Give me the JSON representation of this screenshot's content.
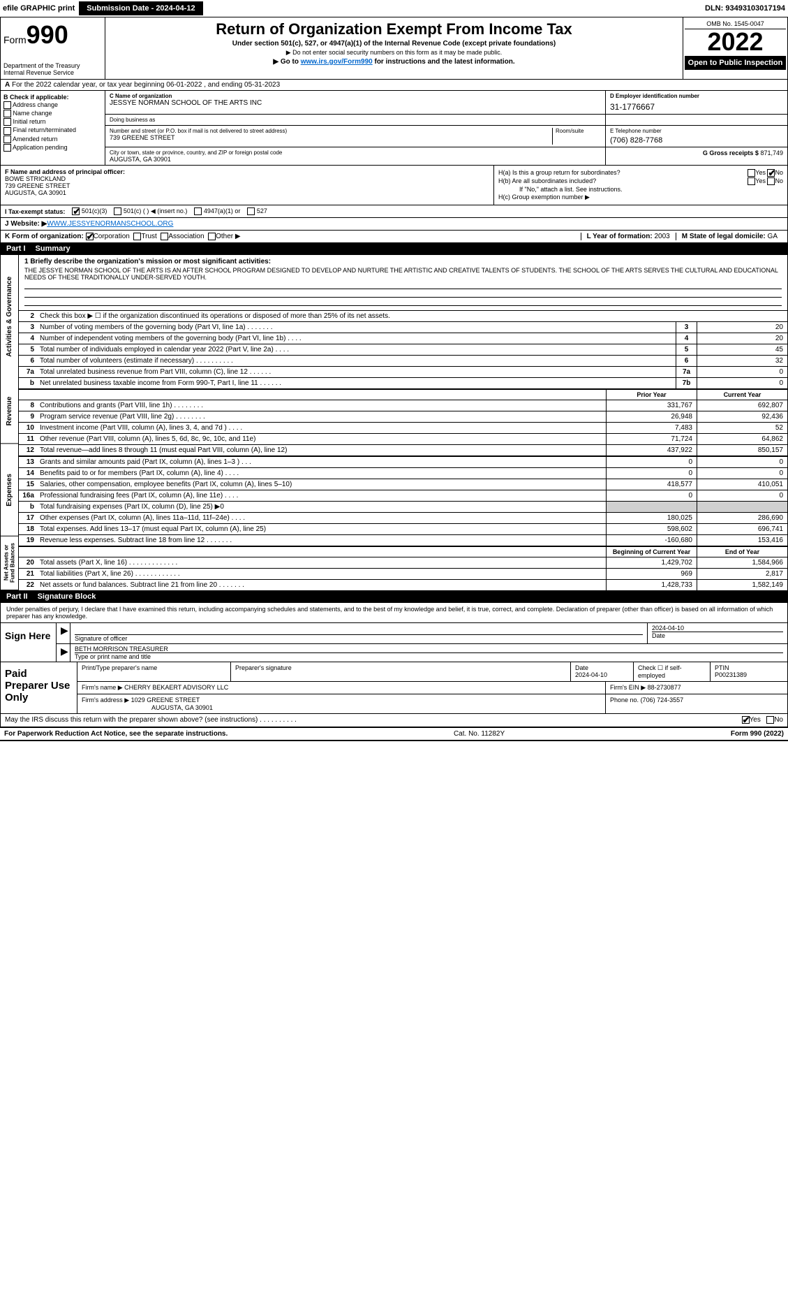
{
  "topbar": {
    "efile": "efile GRAPHIC print",
    "submission": "Submission Date - 2024-04-12",
    "dln": "DLN: 93493103017194"
  },
  "header": {
    "form_prefix": "Form",
    "form_number": "990",
    "dept": "Department of the Treasury",
    "irs": "Internal Revenue Service",
    "title": "Return of Organization Exempt From Income Tax",
    "subtitle": "Under section 501(c), 527, or 4947(a)(1) of the Internal Revenue Code (except private foundations)",
    "note1": "▶ Do not enter social security numbers on this form as it may be made public.",
    "note2_pre": "▶ Go to ",
    "note2_link": "www.irs.gov/Form990",
    "note2_post": " for instructions and the latest information.",
    "omb": "OMB No. 1545-0047",
    "year": "2022",
    "open": "Open to Public Inspection"
  },
  "rowA": {
    "label_a": "A",
    "text": "For the 2022 calendar year, or tax year beginning 06-01-2022   , and ending 05-31-2023"
  },
  "colB": {
    "head": "B Check if applicable:",
    "opts": [
      "Address change",
      "Name change",
      "Initial return",
      "Final return/terminated",
      "Amended return",
      "Application pending"
    ]
  },
  "colC": {
    "lbl_name": "C Name of organization",
    "org": "JESSYE NORMAN SCHOOL OF THE ARTS INC",
    "dba_lbl": "Doing business as",
    "addr_lbl": "Number and street (or P.O. box if mail is not delivered to street address)",
    "room_lbl": "Room/suite",
    "addr": "739 GREENE STREET",
    "city_lbl": "City or town, state or province, country, and ZIP or foreign postal code",
    "city": "AUGUSTA, GA  30901"
  },
  "colD": {
    "lbl": "D Employer identification number",
    "ein": "31-1776667",
    "e_lbl": "E Telephone number",
    "phone": "(706) 828-7768",
    "g_lbl": "G Gross receipts $",
    "gross": "871,749"
  },
  "rowF": {
    "lbl": "F Name and address of principal officer:",
    "name": "BOWE STRICKLAND",
    "addr1": "739 GREENE STREET",
    "addr2": "AUGUSTA, GA  30901"
  },
  "rowH": {
    "ha": "H(a)  Is this a group return for subordinates?",
    "hb": "H(b)  Are all subordinates included?",
    "hb_note": "If \"No,\" attach a list. See instructions.",
    "hc": "H(c)  Group exemption number ▶",
    "yes": "Yes",
    "no": "No"
  },
  "rowI": {
    "lbl": "I  Tax-exempt status:",
    "o1": "501(c)(3)",
    "o2": "501(c) (   ) ◀ (insert no.)",
    "o3": "4947(a)(1) or",
    "o4": "527"
  },
  "rowJ": {
    "lbl": "J  Website: ▶ ",
    "url": "WWW.JESSYENORMANSCHOOL.ORG"
  },
  "rowK": {
    "lbl": "K Form of organization:",
    "o1": "Corporation",
    "o2": "Trust",
    "o3": "Association",
    "o4": "Other ▶"
  },
  "rowLM": {
    "l_lbl": "L Year of formation:",
    "l_val": "2003",
    "m_lbl": "M State of legal domicile:",
    "m_val": "GA"
  },
  "part1": {
    "tag": "Part I",
    "title": "Summary"
  },
  "sidetabs": {
    "a": "Activities & Governance",
    "b": "Revenue",
    "c": "Expenses",
    "d": "Net Assets or Fund Balances"
  },
  "mission": {
    "lbl": "1  Briefly describe the organization's mission or most significant activities:",
    "text": "THE JESSYE NORMAN SCHOOL OF THE ARTS IS AN AFTER SCHOOL PROGRAM DESIGNED TO DEVELOP AND NURTURE THE ARTISTIC AND CREATIVE TALENTS OF STUDENTS. THE SCHOOL OF THE ARTS SERVES THE CULTURAL AND EDUCATIONAL NEEDS OF THESE TRADITIONALLY UNDER-SERVED YOUTH."
  },
  "lines_gov": [
    {
      "n": "2",
      "d": "Check this box ▶ ☐ if the organization discontinued its operations or disposed of more than 25% of its net assets.",
      "box": "",
      "v": ""
    },
    {
      "n": "3",
      "d": "Number of voting members of the governing body (Part VI, line 1a)  .    .    .    .    .    .    .",
      "box": "3",
      "v": "20"
    },
    {
      "n": "4",
      "d": "Number of independent voting members of the governing body (Part VI, line 1b)   .    .    .    .",
      "box": "4",
      "v": "20"
    },
    {
      "n": "5",
      "d": "Total number of individuals employed in calendar year 2022 (Part V, line 2a)   .    .    .    .",
      "box": "5",
      "v": "45"
    },
    {
      "n": "6",
      "d": "Total number of volunteers (estimate if necessary)   .    .    .    .    .    .    .    .    .    .",
      "box": "6",
      "v": "32"
    },
    {
      "n": "7a",
      "d": "Total unrelated business revenue from Part VIII, column (C), line 12   .    .    .    .    .    .",
      "box": "7a",
      "v": "0"
    },
    {
      "n": "b",
      "d": "Net unrelated business taxable income from Form 990-T, Part I, line 11   .    .    .    .    .    .",
      "box": "7b",
      "v": "0"
    }
  ],
  "col_hdr": {
    "prior": "Prior Year",
    "curr": "Current Year"
  },
  "lines_rev": [
    {
      "n": "8",
      "d": "Contributions and grants (Part VIII, line 1h)   .    .    .    .    .    .    .    .",
      "p": "331,767",
      "c": "692,807"
    },
    {
      "n": "9",
      "d": "Program service revenue (Part VIII, line 2g)   .    .    .    .    .    .    .    .",
      "p": "26,948",
      "c": "92,436"
    },
    {
      "n": "10",
      "d": "Investment income (Part VIII, column (A), lines 3, 4, and 7d )   .    .    .    .",
      "p": "7,483",
      "c": "52"
    },
    {
      "n": "11",
      "d": "Other revenue (Part VIII, column (A), lines 5, 6d, 8c, 9c, 10c, and 11e)",
      "p": "71,724",
      "c": "64,862"
    },
    {
      "n": "12",
      "d": "Total revenue—add lines 8 through 11 (must equal Part VIII, column (A), line 12)",
      "p": "437,922",
      "c": "850,157"
    }
  ],
  "lines_exp": [
    {
      "n": "13",
      "d": "Grants and similar amounts paid (Part IX, column (A), lines 1–3 )   .    .    .",
      "p": "0",
      "c": "0"
    },
    {
      "n": "14",
      "d": "Benefits paid to or for members (Part IX, column (A), line 4)   .    .    .    .",
      "p": "0",
      "c": "0"
    },
    {
      "n": "15",
      "d": "Salaries, other compensation, employee benefits (Part IX, column (A), lines 5–10)",
      "p": "418,577",
      "c": "410,051"
    },
    {
      "n": "16a",
      "d": "Professional fundraising fees (Part IX, column (A), line 11e)   .    .    .    .",
      "p": "0",
      "c": "0"
    },
    {
      "n": "b",
      "d": "Total fundraising expenses (Part IX, column (D), line 25) ▶0",
      "p": "",
      "c": "",
      "shade": true
    },
    {
      "n": "17",
      "d": "Other expenses (Part IX, column (A), lines 11a–11d, 11f–24e)   .    .    .    .",
      "p": "180,025",
      "c": "286,690"
    },
    {
      "n": "18",
      "d": "Total expenses. Add lines 13–17 (must equal Part IX, column (A), line 25)",
      "p": "598,602",
      "c": "696,741"
    },
    {
      "n": "19",
      "d": "Revenue less expenses. Subtract line 18 from line 12   .    .    .    .    .    .    .",
      "p": "-160,680",
      "c": "153,416"
    }
  ],
  "col_hdr2": {
    "beg": "Beginning of Current Year",
    "end": "End of Year"
  },
  "lines_net": [
    {
      "n": "20",
      "d": "Total assets (Part X, line 16)   .    .    .    .    .    .    .    .    .    .    .    .    .",
      "p": "1,429,702",
      "c": "1,584,966"
    },
    {
      "n": "21",
      "d": "Total liabilities (Part X, line 26)   .    .    .    .    .    .    .    .    .    .    .    .",
      "p": "969",
      "c": "2,817"
    },
    {
      "n": "22",
      "d": "Net assets or fund balances. Subtract line 21 from line 20   .    .    .    .    .    .    .",
      "p": "1,428,733",
      "c": "1,582,149"
    }
  ],
  "part2": {
    "tag": "Part II",
    "title": "Signature Block"
  },
  "sig_intro": "Under penalties of perjury, I declare that I have examined this return, including accompanying schedules and statements, and to the best of my knowledge and belief, it is true, correct, and complete. Declaration of preparer (other than officer) is based on all information of which preparer has any knowledge.",
  "sign": {
    "here": "Sign Here",
    "sig_lbl": "Signature of officer",
    "date_lbl": "Date",
    "date": "2024-04-10",
    "name": "BETH MORRISON TREASURER",
    "name_lbl": "Type or print name and title"
  },
  "prep": {
    "left": "Paid Preparer Use Only",
    "r1": {
      "c1": "Print/Type preparer's name",
      "c2": "Preparer's signature",
      "c3_lbl": "Date",
      "c3": "2024-04-10",
      "c4_lbl": "Check ☐ if self-employed",
      "c5_lbl": "PTIN",
      "c5": "P00231389"
    },
    "r2": {
      "lbl": "Firm's name     ▶",
      "val": "CHERRY BEKAERT ADVISORY LLC",
      "ein_lbl": "Firm's EIN ▶",
      "ein": "88-2730877"
    },
    "r3": {
      "lbl": "Firm's address ▶",
      "val1": "1029 GREENE STREET",
      "val2": "AUGUSTA, GA  30901",
      "ph_lbl": "Phone no.",
      "ph": "(706) 724-3557"
    }
  },
  "discuss": {
    "q": "May the IRS discuss this return with the preparer shown above? (see instructions)   .    .    .    .    .    .    .    .    .    .",
    "yes": "Yes",
    "no": "No"
  },
  "footer": {
    "left": "For Paperwork Reduction Act Notice, see the separate instructions.",
    "mid": "Cat. No. 11282Y",
    "right": "Form 990 (2022)"
  }
}
